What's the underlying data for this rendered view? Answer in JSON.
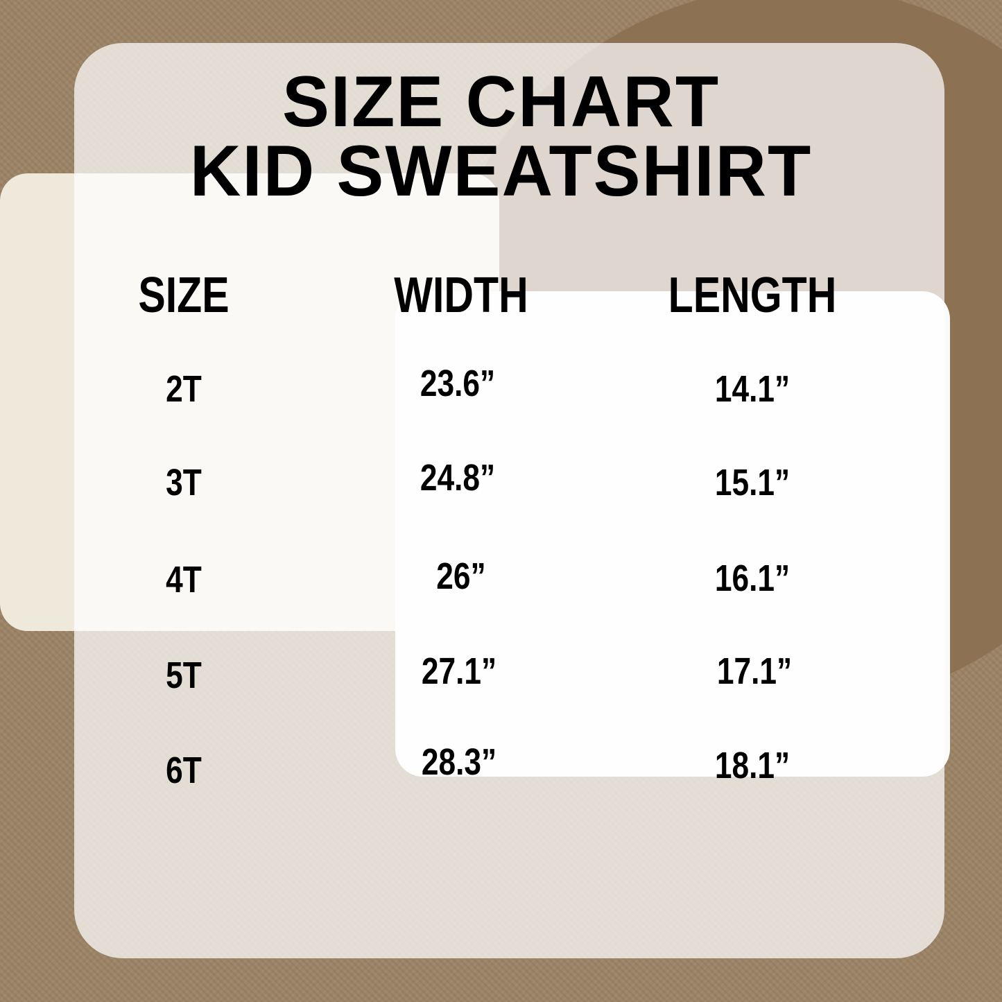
{
  "title_line1": "SIZE CHART",
  "title_line2": "KID SWEATSHIRT",
  "columns": [
    "SIZE",
    "WIDTH",
    "LENGTH"
  ],
  "rows": [
    {
      "size": "2T",
      "width": "23.6”",
      "length": "14.1”"
    },
    {
      "size": "3T",
      "width": "24.8”",
      "length": "15.1”"
    },
    {
      "size": "4T",
      "width": "26”",
      "length": "16.1”"
    },
    {
      "size": "5T",
      "width": "27.1”",
      "length": "17.1”"
    },
    {
      "size": "6T",
      "width": "28.3”",
      "length": "18.1”"
    }
  ]
}
